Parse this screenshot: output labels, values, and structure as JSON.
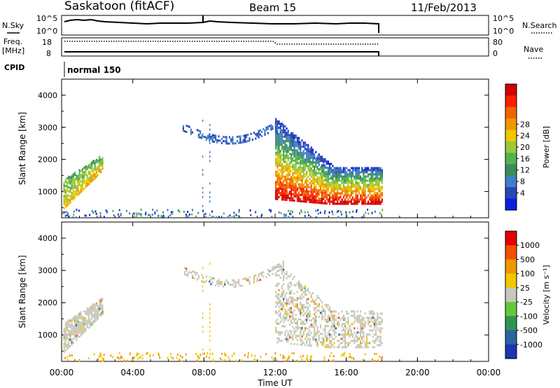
{
  "header": {
    "station": "Saskatoon  (fitACF)",
    "beam": "Beam 15",
    "date": "11/Feb/2013"
  },
  "top_panels": {
    "nsky_label": "N.Sky",
    "nsky_ticks": [
      "10^5",
      "10^0"
    ],
    "nsky_right_ticks": [
      "10^5",
      "10^0"
    ],
    "nsearch_label": "N.Search",
    "freq_label": "Freq.",
    "freq_unit": "[MHz]",
    "freq_ticks": [
      "18",
      "8"
    ],
    "nave_ticks": [
      "80",
      "0"
    ],
    "nave_label": "Nave",
    "cpid_label": "CPID",
    "cpid_value": "normal 150"
  },
  "chart_data": [
    {
      "type": "heatmap",
      "name": "power",
      "xlabel": "Time UT",
      "ylabel": "Slant Range [km]",
      "xlim": [
        0,
        24
      ],
      "ylim": [
        180,
        4500
      ],
      "x_ticks": [
        "00:00",
        "04:00",
        "08:00",
        "12:00",
        "16:00",
        "20:00",
        "00:00"
      ],
      "y_ticks": [
        1000,
        2000,
        3000,
        4000
      ],
      "colorbar_label": "Power [dB]",
      "colorbar_ticks": [
        "4",
        "8",
        "12",
        "16",
        "20",
        "24",
        "28"
      ],
      "colorbar_colors": [
        "#0a1ee0",
        "#2846b4",
        "#3f7ec8",
        "#3c8c5a",
        "#50b450",
        "#9cc83c",
        "#f0c800",
        "#f09600",
        "#f06400",
        "#ff1e00",
        "#d00000"
      ],
      "features": [
        {
          "x0": 12.0,
          "x1": 18.0,
          "y0": 700,
          "y1": 1900,
          "level": "strong"
        },
        {
          "x0": 0.1,
          "x1": 2.3,
          "y0": 900,
          "y1": 2200,
          "level": "medium"
        },
        {
          "x0": 6.8,
          "x1": 12.5,
          "y0": 2500,
          "y1": 3300,
          "level": "weak"
        }
      ]
    },
    {
      "type": "heatmap",
      "name": "velocity",
      "xlabel": "Time UT",
      "ylabel": "Slant Range [km]",
      "xlim": [
        0,
        24
      ],
      "ylim": [
        180,
        4500
      ],
      "x_ticks": [
        "00:00",
        "04:00",
        "08:00",
        "12:00",
        "16:00",
        "20:00",
        "00:00"
      ],
      "y_ticks": [
        1000,
        2000,
        3000,
        4000
      ],
      "colorbar_label": "Velocity [m s⁻¹]",
      "colorbar_ticks": [
        "1000",
        "500",
        "100",
        "25",
        "-25",
        "-100",
        "-500",
        "-1000"
      ],
      "colorbar_colors": [
        "#1e32b4",
        "#2864a0",
        "#2d9650",
        "#64c83c",
        "#c8c8bc",
        "#f0c800",
        "#f09600",
        "#f05000",
        "#e60000"
      ],
      "features": [
        {
          "x0": 12.0,
          "x1": 18.0,
          "y0": 700,
          "y1": 1900,
          "level": "near-zero"
        },
        {
          "x0": 0.1,
          "x1": 2.3,
          "y0": 900,
          "y1": 2200,
          "level": "mixed"
        },
        {
          "x0": 6.8,
          "x1": 12.5,
          "y0": 2500,
          "y1": 3300,
          "level": "near-zero"
        }
      ]
    }
  ]
}
